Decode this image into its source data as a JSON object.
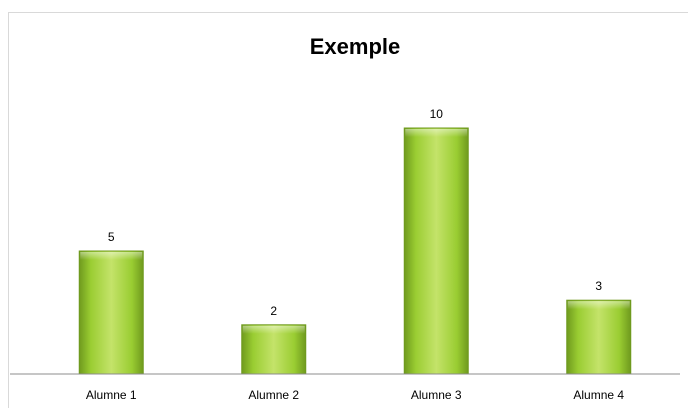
{
  "chart_data": {
    "type": "bar",
    "title": "Exemple",
    "categories": [
      "Alumne 1",
      "Alumne 2",
      "Alumne 3",
      "Alumne 4"
    ],
    "values": [
      5,
      2,
      10,
      3
    ],
    "xlabel": "",
    "ylabel": "",
    "ylim": [
      0,
      10
    ],
    "grid": false,
    "legend": "none",
    "bar_color": "#9acd32",
    "bar_color_dark": "#6f9a1e",
    "bar_color_light": "#c4e36a"
  }
}
